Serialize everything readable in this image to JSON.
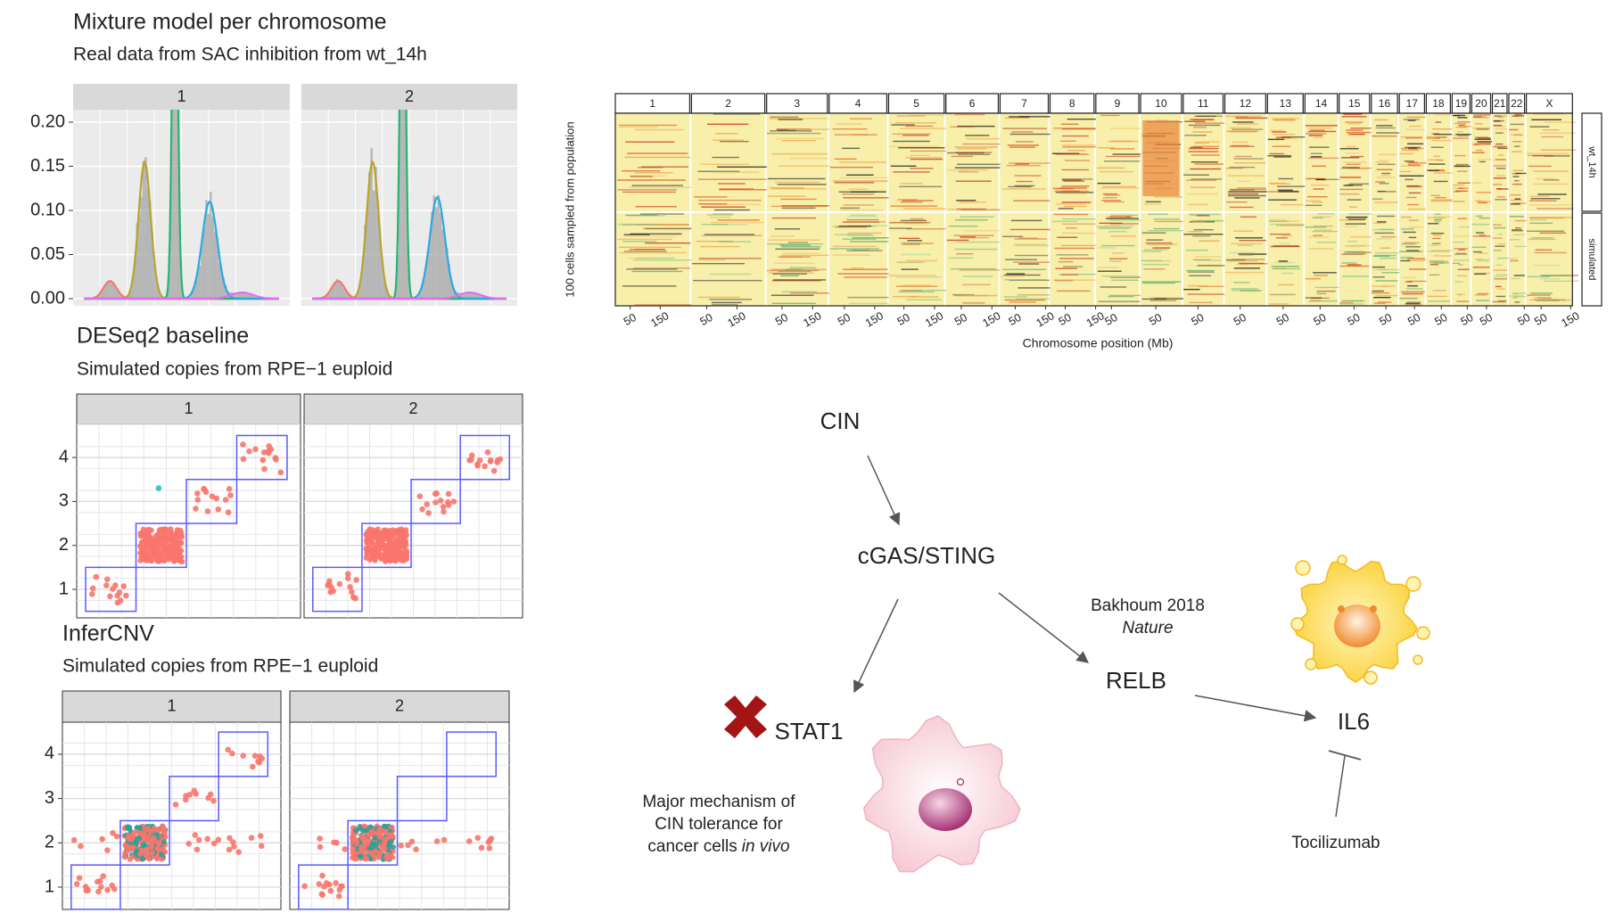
{
  "mixture": {
    "title": "Mixture model per chromosome",
    "subtitle": "Real data from SAC inhibition from wt_14h",
    "panels": [
      "1",
      "2"
    ],
    "ylim": [
      0,
      0.21
    ],
    "yticks": [
      {
        "value": 0,
        "label": "0.00"
      },
      {
        "value": 0.05,
        "label": "0.05"
      },
      {
        "value": 0.1,
        "label": "0.10"
      },
      {
        "value": 0.15,
        "label": "0.15"
      },
      {
        "value": 0.2,
        "label": "0.20"
      }
    ]
  },
  "deseq": {
    "title": "DESeq2 baseline",
    "subtitle": "Simulated copies from RPE−1 euploid",
    "panels": [
      "1",
      "2"
    ],
    "yticks": [
      1,
      2,
      3,
      4
    ]
  },
  "infercnv": {
    "title": "InferCNV",
    "subtitle": "Simulated copies from RPE−1 euploid",
    "panels": [
      "1",
      "2"
    ],
    "yticks": [
      1,
      2,
      3,
      4
    ]
  },
  "heatmap": {
    "ylabel": "100 cells sampled from population",
    "xlabel": "Chromosome position (Mb)",
    "chromosomes": [
      "1",
      "2",
      "3",
      "4",
      "5",
      "6",
      "7",
      "8",
      "9",
      "10",
      "11",
      "12",
      "13",
      "14",
      "15",
      "16",
      "17",
      "18",
      "19",
      "20",
      "21",
      "22",
      "X"
    ],
    "ticks": [
      [
        50,
        150
      ],
      [
        50,
        150
      ],
      [
        50,
        150
      ],
      [
        50,
        150
      ],
      [
        50,
        150
      ],
      [
        50,
        150
      ],
      [
        50,
        150
      ],
      [
        50,
        150
      ],
      [
        50
      ],
      [
        50
      ],
      [
        50
      ],
      [
        50
      ],
      [
        50
      ],
      [
        50
      ],
      [
        50
      ],
      [
        50
      ],
      [
        50
      ],
      [
        50
      ],
      [
        50
      ],
      [
        50
      ],
      [],
      [
        50
      ],
      [
        50,
        150
      ]
    ],
    "rows": [
      "wt_14h",
      "simulated"
    ]
  },
  "diagram": {
    "nodes": [
      {
        "label": "CIN"
      },
      {
        "label": "cGAS/STING"
      },
      {
        "label": "STAT1"
      },
      {
        "label": "RELB"
      },
      {
        "label": "IL6"
      }
    ],
    "citation": {
      "author": "Bakhoum 2018",
      "journal": "Nature"
    },
    "note": {
      "lines": [
        "Major mechanism of",
        "CIN tolerance for"
      ],
      "last": "cancer cells",
      "last_italic": "in vivo"
    },
    "drug": "Tocilizumab"
  }
}
